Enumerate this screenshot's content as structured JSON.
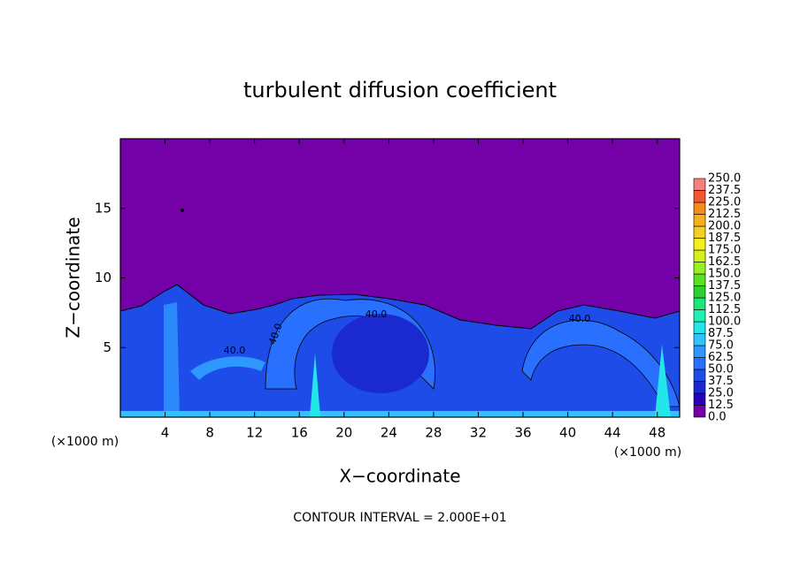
{
  "chart_data": {
    "type": "contour",
    "title": "turbulent diffusion coefficient",
    "x_label": "X−coordinate",
    "y_label": "Z−coordinate",
    "x_unit_left": "(×1000 m)",
    "x_unit_right": "(×1000 m)",
    "footnote": "CONTOUR INTERVAL = 2.000E+01",
    "xlim": [
      0,
      50
    ],
    "ylim": [
      0,
      20
    ],
    "xticks": [
      4,
      8,
      12,
      16,
      20,
      24,
      28,
      32,
      36,
      40,
      44,
      48
    ],
    "yticks": [
      5,
      10,
      15
    ],
    "colorbar_levels": [
      {
        "value": 0,
        "label": "0.0"
      },
      12.5,
      {
        "value": 25,
        "label": "25.0"
      },
      37.5,
      {
        "value": 50,
        "label": "50.0"
      },
      62.5,
      {
        "value": 75,
        "label": "75.0"
      },
      87.5,
      {
        "value": 100,
        "label": "100.0"
      },
      112.5,
      {
        "value": 125,
        "label": "125.0"
      },
      137.5,
      {
        "value": 150,
        "label": "150.0"
      },
      162.5,
      {
        "value": 175,
        "label": "175.0"
      },
      187.5,
      {
        "value": 200,
        "label": "200.0"
      },
      212.5,
      {
        "value": 225,
        "label": "225.0"
      },
      237.5,
      {
        "value": 250,
        "label": "250.0"
      }
    ],
    "colorbar_colors": [
      "#7400a8",
      "#2a00b8",
      "#1a2ad0",
      "#1e4ce8",
      "#2a70ff",
      "#2e98ff",
      "#30c4ff",
      "#22e6e8",
      "#20f0b4",
      "#20e47c",
      "#2cd030",
      "#5ce020",
      "#98f020",
      "#d4f020",
      "#f4f020",
      "#f4d020",
      "#f4b020",
      "#f48c20",
      "#f45830",
      "#f48080"
    ],
    "contour_levels": [
      40,
      40,
      40,
      40
    ],
    "contour_level_labels": [
      "40.0",
      "40.0",
      "40.0",
      "40.0"
    ]
  }
}
